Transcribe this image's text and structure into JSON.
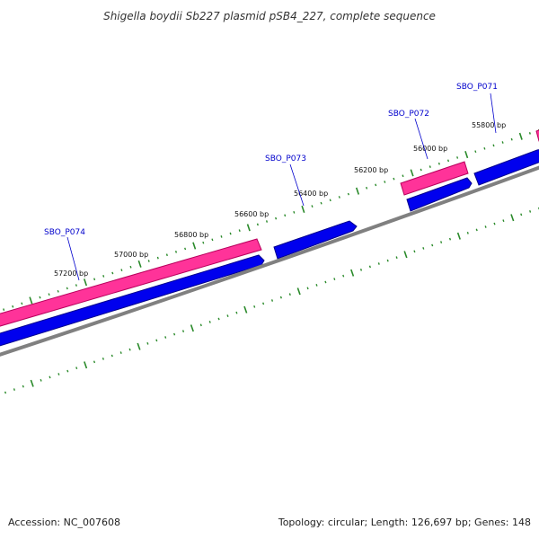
{
  "title": "Shigella boydii Sb227 plasmid pSB4_227, complete sequence",
  "footer": {
    "accession": "Accession: NC_007608",
    "info": "Topology: circular; Length: 126,697 bp; Genes: 148"
  },
  "colors": {
    "forward_feature": "#ff3399",
    "forward_feature_edge": "#b8005c",
    "reverse_feature": "#0000ee",
    "reverse_feature_edge": "#00008c",
    "backbone": "#808080",
    "tick": "#2a8a2a",
    "gene_label": "#0000cc",
    "label_line": "#0000cc"
  },
  "bp_labels": [
    "55800 bp",
    "56000 bp",
    "56200 bp",
    "56400 bp",
    "56600 bp",
    "56800 bp",
    "57000 bp",
    "57200 bp"
  ],
  "genes": [
    {
      "name": "SBO_P071"
    },
    {
      "name": "SBO_P072"
    },
    {
      "name": "SBO_P073"
    },
    {
      "name": "SBO_P074"
    }
  ]
}
